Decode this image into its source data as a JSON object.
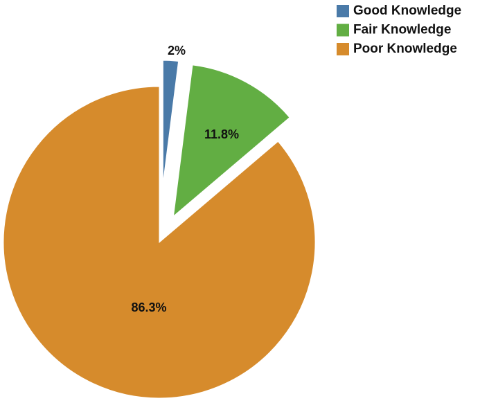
{
  "chart_data": {
    "type": "pie",
    "categories": [
      "Good Knowledge",
      "Fair Knowledge",
      "Poor Knowledge"
    ],
    "values": [
      2,
      11.8,
      86.3
    ],
    "value_labels": [
      "2%",
      "11.8%",
      "86.3%"
    ],
    "colors": [
      "#4a7aa8",
      "#62ae43",
      "#d68b2c"
    ],
    "legend": "top-right"
  }
}
